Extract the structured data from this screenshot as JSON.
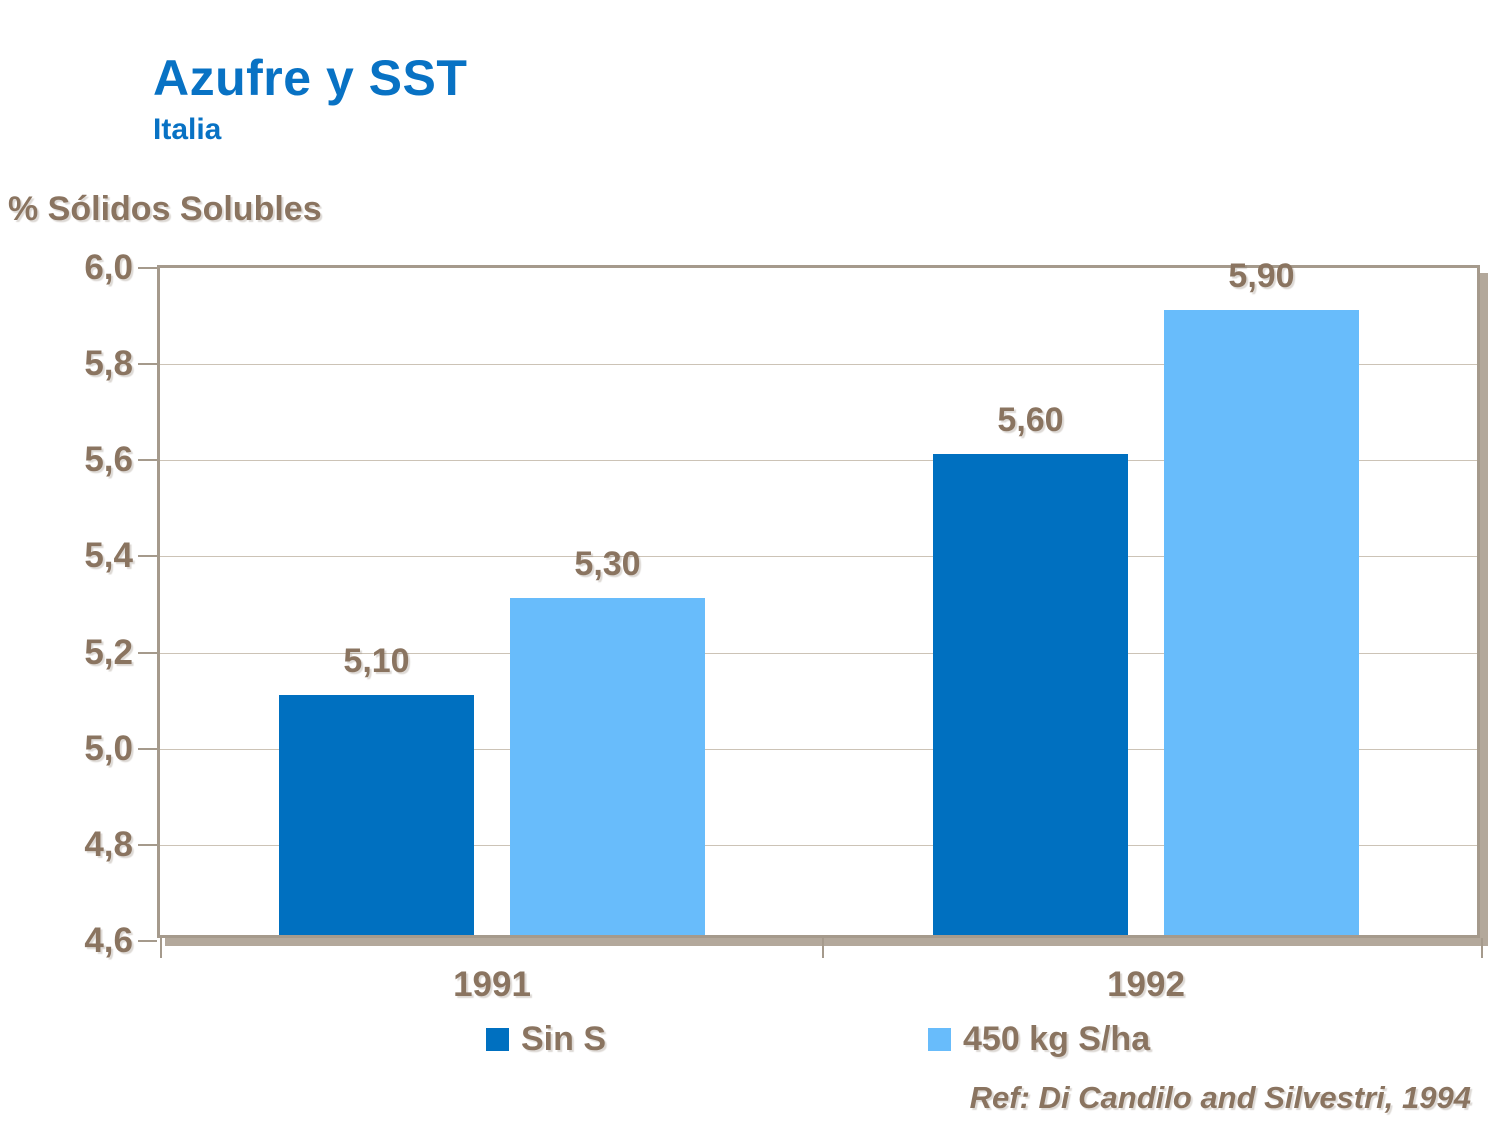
{
  "title": "Azufre y SST",
  "subtitle": "Italia",
  "y_axis_title": "% Sólidos Solubles",
  "reference": "Ref: Di Candilo and Silvestri, 1994",
  "colors": {
    "title_blue": "#0872C4",
    "text_taupe": "#8A7460",
    "frame": "#A59A8C",
    "frame_shadow": "#B3A89B",
    "gridline": "#CCC3B6",
    "series1": "#0070C0",
    "series2": "#68BCFB"
  },
  "chart_data": {
    "type": "bar",
    "title": "Azufre y SST — Italia",
    "xlabel": "",
    "ylabel": "% Sólidos Solubles",
    "categories": [
      "1991",
      "1992"
    ],
    "series": [
      {
        "name": "Sin S",
        "color": "#0070C0",
        "values": [
          5.1,
          5.6
        ],
        "labels": [
          "5,10",
          "5,60"
        ]
      },
      {
        "name": "450 kg S/ha",
        "color": "#68BCFB",
        "values": [
          5.3,
          5.9
        ],
        "labels": [
          "5,30",
          "5,90"
        ]
      }
    ],
    "ylim": [
      4.6,
      6.0
    ],
    "ytick_step": 0.2,
    "ytick_labels": [
      "6,0",
      "5,8",
      "5,6",
      "5,4",
      "5,2",
      "5,0",
      "4,8",
      "4,6"
    ],
    "grid": true,
    "legend_position": "bottom"
  }
}
